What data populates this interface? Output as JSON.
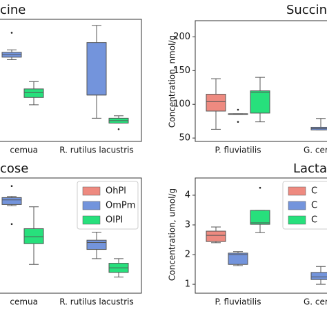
{
  "chart_data": [
    {
      "type": "box",
      "title": "cine",
      "categories": [
        "cemua",
        "R. rutilus lacustris"
      ],
      "ylim": [
        0,
        100
      ],
      "series": [
        {
          "color": "#ee8a80",
          "values": [
            null,
            null
          ]
        },
        {
          "color": "#7394dc",
          "values": [
            {
              "whislo": 67,
              "q1": 69,
              "med": 71,
              "q3": 73,
              "whishi": 75,
              "fliers": [
                89
              ]
            },
            {
              "whislo": 19,
              "q1": 38,
              "med": 38,
              "q3": 81,
              "whishi": 95
            }
          ]
        },
        {
          "color": "#27e07c",
          "values": [
            {
              "whislo": 30,
              "q1": 36,
              "med": 40,
              "q3": 43,
              "whishi": 49
            },
            {
              "whislo": 15,
              "q1": 15,
              "med": 17,
              "q3": 19,
              "whishi": 21,
              "fliers": [
                10
              ]
            }
          ]
        }
      ]
    },
    {
      "type": "box",
      "title": "Succin",
      "ylabel": "Concentration, nmol/g",
      "categories": [
        "P. fluviatilis",
        "G. cer"
      ],
      "ylim": [
        45,
        224
      ],
      "yticks": [
        50,
        100,
        150,
        200
      ],
      "series": [
        {
          "color": "#ee8a80",
          "values": [
            {
              "whislo": 63,
              "q1": 90,
              "med": 104,
              "q3": 115,
              "whishi": 138
            },
            null
          ]
        },
        {
          "color": "#7394dc",
          "values": [
            {
              "whislo": 85,
              "q1": 85,
              "med": 86,
              "q3": 86,
              "whishi": 86,
              "fliers": [
                92,
                74
              ]
            },
            {
              "whislo": 62,
              "q1": 62,
              "med": 64,
              "q3": 66,
              "whishi": 79
            }
          ]
        },
        {
          "color": "#27e07c",
          "values": [
            {
              "whislo": 74,
              "q1": 87,
              "med": 118,
              "q3": 120,
              "whishi": 140
            },
            null
          ]
        }
      ]
    },
    {
      "type": "box",
      "title": "cose",
      "categories": [
        "cemua",
        "R. rutilus lacustris"
      ],
      "ylim": [
        0,
        100
      ],
      "series": [
        {
          "name": "OhPl",
          "color": "#ee8a80",
          "values": [
            null,
            null
          ]
        },
        {
          "name": "OmPm",
          "color": "#7394dc",
          "values": [
            {
              "whislo": 76,
              "q1": 77,
              "med": 81,
              "q3": 83,
              "whishi": 84,
              "fliers": [
                93,
                60
              ]
            },
            {
              "whislo": 30,
              "q1": 38,
              "med": 44,
              "q3": 46,
              "whishi": 53
            }
          ]
        },
        {
          "name": "OlPl",
          "color": "#27e07c",
          "values": [
            {
              "whislo": 25,
              "q1": 43,
              "med": 49,
              "q3": 56,
              "whishi": 75
            },
            {
              "whislo": 14,
              "q1": 18,
              "med": 22,
              "q3": 26,
              "whishi": 30
            }
          ]
        }
      ]
    },
    {
      "type": "box",
      "title": "Lacta",
      "ylabel": "Concentration, umol/g",
      "categories": [
        "P. fluviatilis",
        "G. cer"
      ],
      "ylim": [
        0.7,
        4.58
      ],
      "yticks": [
        1,
        2,
        3,
        4
      ],
      "series": [
        {
          "name": "C",
          "color": "#ee8a80",
          "values": [
            {
              "whislo": 2.4,
              "q1": 2.44,
              "med": 2.65,
              "q3": 2.79,
              "whishi": 2.93
            },
            null
          ]
        },
        {
          "name": "C",
          "color": "#7394dc",
          "values": [
            {
              "whislo": 1.63,
              "q1": 1.67,
              "med": 2.0,
              "q3": 2.05,
              "whishi": 2.1
            },
            {
              "whislo": 1.0,
              "q1": 1.16,
              "med": 1.25,
              "q3": 1.4,
              "whishi": 1.6
            }
          ]
        },
        {
          "name": "C",
          "color": "#27e07c",
          "values": [
            {
              "whislo": 2.74,
              "q1": 3.02,
              "med": 3.07,
              "q3": 3.49,
              "whishi": 3.49,
              "fliers": [
                4.25
              ]
            },
            null
          ]
        }
      ]
    }
  ]
}
